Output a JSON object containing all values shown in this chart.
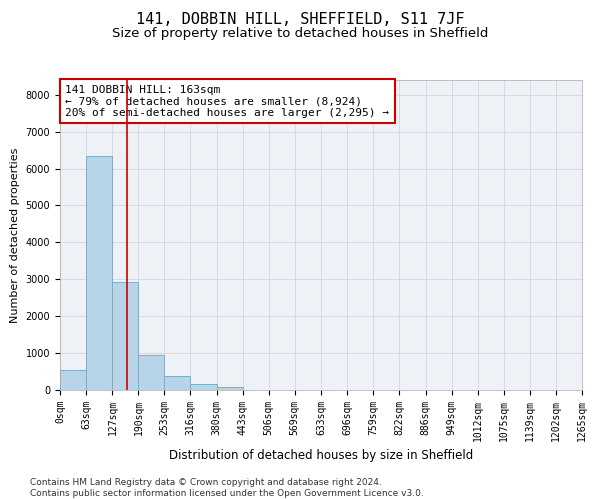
{
  "title": "141, DOBBIN HILL, SHEFFIELD, S11 7JF",
  "subtitle": "Size of property relative to detached houses in Sheffield",
  "xlabel": "Distribution of detached houses by size in Sheffield",
  "ylabel": "Number of detached properties",
  "bar_color": "#b8d4e8",
  "bar_edge_color": "#7aaec8",
  "vline_color": "#cc0000",
  "property_size": 163,
  "annotation_text": "141 DOBBIN HILL: 163sqm\n← 79% of detached houses are smaller (8,924)\n20% of semi-detached houses are larger (2,295) →",
  "annotation_box_color": "white",
  "annotation_box_edge_color": "#cc0000",
  "grid_color": "#d0dde8",
  "background_color": "#eef2f7",
  "bins": [
    0,
    63,
    127,
    190,
    253,
    316,
    380,
    443,
    506,
    569,
    633,
    696,
    759,
    822,
    886,
    949,
    1012,
    1075,
    1139,
    1202,
    1265
  ],
  "bar_heights": [
    550,
    6350,
    2920,
    960,
    370,
    150,
    80,
    0,
    0,
    0,
    0,
    0,
    0,
    0,
    0,
    0,
    0,
    0,
    0,
    0
  ],
  "xtick_labels": [
    "0sqm",
    "63sqm",
    "127sqm",
    "190sqm",
    "253sqm",
    "316sqm",
    "380sqm",
    "443sqm",
    "506sqm",
    "569sqm",
    "633sqm",
    "696sqm",
    "759sqm",
    "822sqm",
    "886sqm",
    "949sqm",
    "1012sqm",
    "1075sqm",
    "1139sqm",
    "1202sqm",
    "1265sqm"
  ],
  "ylim": [
    0,
    8400
  ],
  "yticks": [
    0,
    1000,
    2000,
    3000,
    4000,
    5000,
    6000,
    7000,
    8000
  ],
  "footnote": "Contains HM Land Registry data © Crown copyright and database right 2024.\nContains public sector information licensed under the Open Government Licence v3.0.",
  "title_fontsize": 11,
  "subtitle_fontsize": 9.5,
  "xlabel_fontsize": 8.5,
  "ylabel_fontsize": 8,
  "tick_fontsize": 7,
  "annotation_fontsize": 8,
  "footnote_fontsize": 6.5
}
